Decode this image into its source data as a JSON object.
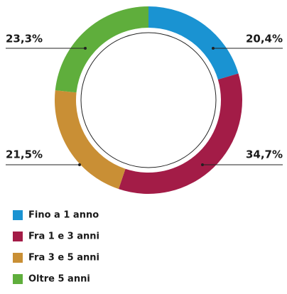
{
  "chart_data": {
    "type": "donut",
    "categories": [
      "Fino a 1 anno",
      "Fra 1 e 3 anni",
      "Fra 3 e 5 anni",
      "Oltre 5 anni"
    ],
    "values": [
      20.4,
      34.7,
      21.5,
      23.3
    ],
    "value_labels": [
      "20,4%",
      "34,7%",
      "21,5%",
      "23,3%"
    ],
    "colors": [
      "#1a93d2",
      "#a31c47",
      "#c98f35",
      "#5fae3c"
    ]
  }
}
